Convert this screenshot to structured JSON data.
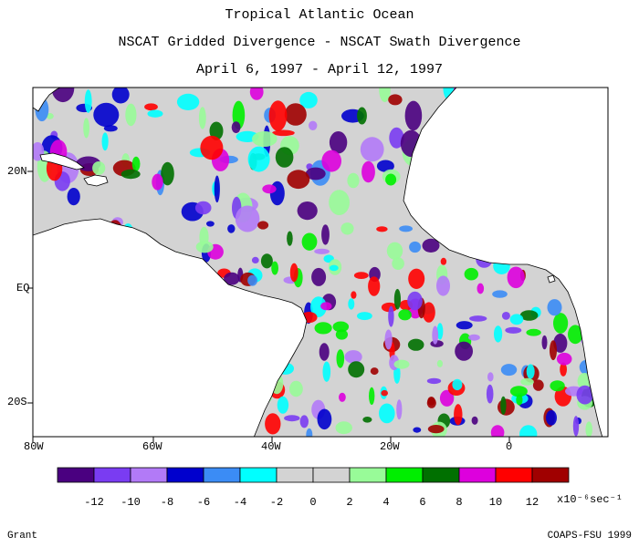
{
  "header": {
    "title": "Tropical Atlantic Ocean",
    "subtitle": "NSCAT Gridded Divergence - NSCAT Swath Divergence",
    "date_range": "April 6, 1997 - April 12, 1997"
  },
  "map": {
    "lat_labels": [
      "20N",
      "EQ",
      "20S"
    ],
    "lon_labels": [
      "80W",
      "60W",
      "40W",
      "20W",
      "0"
    ],
    "lon_range": [
      -80,
      15
    ],
    "lat_range": [
      -28,
      29
    ]
  },
  "colorbar": {
    "tick_labels": [
      "-12",
      "-10",
      "-8",
      "-6",
      "-4",
      "-2",
      "0",
      "2",
      "4",
      "6",
      "8",
      "10",
      "12"
    ],
    "units": "x10⁻⁶sec⁻¹",
    "colors": [
      "#4a0080",
      "#7a3cf2",
      "#b27af7",
      "#0000cd",
      "#3b8cf5",
      "#00ffff",
      "#d3d3d3",
      "#d3d3d3",
      "#98fb98",
      "#00ee00",
      "#007000",
      "#dd00dd",
      "#ff0000",
      "#a00000"
    ]
  },
  "footer": {
    "left": "Grant",
    "right": "COAPS-FSU 1999"
  }
}
